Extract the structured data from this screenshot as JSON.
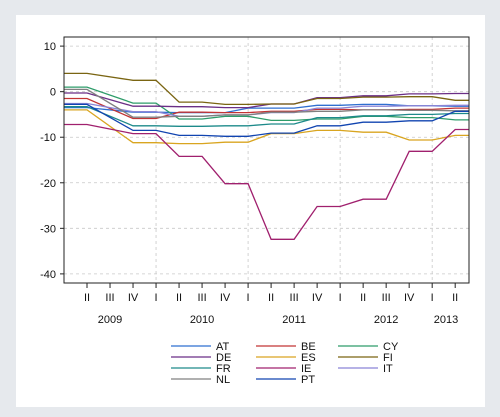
{
  "chart_data": {
    "type": "line",
    "title": "",
    "xlabel": "",
    "ylabel": "",
    "ylim": [
      -42,
      12
    ],
    "grid": true,
    "legend_placement": "bottom",
    "y_ticks": [
      10,
      0,
      -10,
      -20,
      -30,
      -40
    ],
    "x_quarter_ticks": [
      {
        "t": 2009.25,
        "label": "II"
      },
      {
        "t": 2009.5,
        "label": "III"
      },
      {
        "t": 2009.75,
        "label": "IV"
      },
      {
        "t": 2010.0,
        "label": "I"
      },
      {
        "t": 2010.25,
        "label": "II"
      },
      {
        "t": 2010.5,
        "label": "III"
      },
      {
        "t": 2010.75,
        "label": "IV"
      },
      {
        "t": 2011.0,
        "label": "I"
      },
      {
        "t": 2011.25,
        "label": "II"
      },
      {
        "t": 2011.5,
        "label": "III"
      },
      {
        "t": 2011.75,
        "label": "IV"
      },
      {
        "t": 2012.0,
        "label": "I"
      },
      {
        "t": 2012.25,
        "label": "II"
      },
      {
        "t": 2012.5,
        "label": "III"
      },
      {
        "t": 2012.75,
        "label": "IV"
      },
      {
        "t": 2013.0,
        "label": "I"
      },
      {
        "t": 2013.25,
        "label": "II"
      }
    ],
    "x_year_labels": [
      {
        "t": 2009.5,
        "label": "2009"
      },
      {
        "t": 2010.5,
        "label": "2010"
      },
      {
        "t": 2011.5,
        "label": "2011"
      },
      {
        "t": 2012.5,
        "label": "2012"
      },
      {
        "t": 2013.15,
        "label": "2013"
      }
    ],
    "series": [
      {
        "name": "AT",
        "color": "#2f6fd0",
        "x": [
          2009.0,
          2009.25,
          2009.75,
          2010.0,
          2010.25,
          2010.5,
          2010.75,
          2011.0,
          2011.25,
          2011.5,
          2011.75,
          2012.0,
          2012.25,
          2012.5,
          2012.75,
          2013.0,
          2013.25,
          2013.4
        ],
        "y": [
          -3.5,
          -3.5,
          -4.5,
          -4.5,
          -4.6,
          -4.6,
          -4.6,
          -3.6,
          -3.6,
          -3.6,
          -3.0,
          -3.0,
          -2.8,
          -2.8,
          -3.1,
          -3.1,
          -3.2,
          -3.2
        ]
      },
      {
        "name": "BE",
        "color": "#c23434",
        "x": [
          2009.0,
          2009.25,
          2009.75,
          2010.0,
          2010.25,
          2010.5,
          2010.75,
          2011.0,
          2011.25,
          2011.5,
          2011.75,
          2012.0,
          2012.25,
          2012.5,
          2012.75,
          2013.0,
          2013.25,
          2013.4
        ],
        "y": [
          -1.5,
          -1.5,
          -5.9,
          -5.9,
          -4.5,
          -4.5,
          -4.6,
          -4.6,
          -4.3,
          -4.3,
          -3.9,
          -3.9,
          -4.0,
          -4.0,
          -3.9,
          -3.9,
          -3.6,
          -3.6
        ]
      },
      {
        "name": "CY",
        "color": "#2e9c6a",
        "x": [
          2009.0,
          2009.25,
          2009.75,
          2010.0,
          2010.25,
          2010.5,
          2010.75,
          2011.0,
          2011.25,
          2011.5,
          2011.75,
          2012.0,
          2012.25,
          2012.5,
          2012.75,
          2013.0,
          2013.25,
          2013.4
        ],
        "y": [
          1.0,
          1.0,
          -2.5,
          -2.5,
          -6.0,
          -6.0,
          -5.4,
          -5.4,
          -6.3,
          -6.3,
          -6.0,
          -6.0,
          -5.4,
          -5.4,
          -5.7,
          -5.7,
          -6.2,
          -6.2
        ]
      },
      {
        "name": "DE",
        "color": "#6b2f86",
        "x": [
          2009.0,
          2009.25,
          2009.75,
          2010.0,
          2010.25,
          2010.5,
          2010.75,
          2011.0,
          2011.25,
          2011.5,
          2011.75,
          2012.0,
          2012.25,
          2012.5,
          2012.75,
          2013.0,
          2013.25,
          2013.4
        ],
        "y": [
          -0.3,
          -0.3,
          -3.2,
          -3.2,
          -3.3,
          -3.3,
          -3.5,
          -3.5,
          -2.7,
          -2.7,
          -1.3,
          -1.3,
          -0.9,
          -0.9,
          -0.5,
          -0.5,
          -0.4,
          -0.4
        ]
      },
      {
        "name": "ES",
        "color": "#d9a520",
        "x": [
          2009.0,
          2009.25,
          2009.75,
          2010.0,
          2010.25,
          2010.5,
          2010.75,
          2011.0,
          2011.25,
          2011.5,
          2011.75,
          2012.0,
          2012.25,
          2012.5,
          2012.75,
          2013.0,
          2013.25,
          2013.4
        ],
        "y": [
          -4.0,
          -4.0,
          -11.2,
          -11.2,
          -11.4,
          -11.4,
          -11.1,
          -11.1,
          -9.2,
          -9.2,
          -8.5,
          -8.5,
          -8.9,
          -8.9,
          -10.6,
          -10.6,
          -9.6,
          -9.6
        ]
      },
      {
        "name": "FI",
        "color": "#7a6512",
        "x": [
          2009.0,
          2009.25,
          2009.75,
          2010.0,
          2010.25,
          2010.5,
          2010.75,
          2011.0,
          2011.25,
          2011.5,
          2011.75,
          2012.0,
          2012.25,
          2012.5,
          2012.75,
          2013.0,
          2013.25,
          2013.4
        ],
        "y": [
          4.0,
          4.0,
          2.5,
          2.5,
          -2.3,
          -2.3,
          -2.8,
          -2.8,
          -2.7,
          -2.7,
          -1.5,
          -1.5,
          -1.2,
          -1.2,
          -1.1,
          -1.1,
          -1.9,
          -1.9
        ]
      },
      {
        "name": "FR",
        "color": "#1d8a8a",
        "x": [
          2009.0,
          2009.25,
          2009.75,
          2010.0,
          2010.25,
          2010.5,
          2010.75,
          2011.0,
          2011.25,
          2011.5,
          2011.75,
          2012.0,
          2012.25,
          2012.5,
          2012.75,
          2013.0,
          2013.25,
          2013.4
        ],
        "y": [
          -3.3,
          -3.3,
          -7.5,
          -7.5,
          -7.6,
          -7.6,
          -7.5,
          -7.5,
          -7.1,
          -7.1,
          -5.7,
          -5.7,
          -5.3,
          -5.3,
          -5.0,
          -5.0,
          -4.8,
          -4.8
        ]
      },
      {
        "name": "IE",
        "color": "#a0206e",
        "x": [
          2009.0,
          2009.25,
          2009.75,
          2010.0,
          2010.25,
          2010.5,
          2010.75,
          2011.0,
          2011.25,
          2011.5,
          2011.75,
          2012.0,
          2012.25,
          2012.5,
          2012.75,
          2013.0,
          2013.25,
          2013.4
        ],
        "y": [
          -7.2,
          -7.2,
          -9.2,
          -9.2,
          -14.2,
          -14.2,
          -20.2,
          -20.2,
          -32.4,
          -32.4,
          -25.2,
          -25.2,
          -23.6,
          -23.6,
          -13.1,
          -13.1,
          -8.3,
          -8.3
        ]
      },
      {
        "name": "IT",
        "color": "#8a85d6",
        "x": [
          2009.0,
          2009.25,
          2009.75,
          2010.0,
          2010.25,
          2010.5,
          2010.75,
          2011.0,
          2011.25,
          2011.5,
          2011.75,
          2012.0,
          2012.25,
          2012.5,
          2012.75,
          2013.0,
          2013.25,
          2013.4
        ],
        "y": [
          -2.6,
          -2.6,
          -4.4,
          -4.4,
          -5.4,
          -5.4,
          -5.1,
          -5.1,
          -4.6,
          -4.6,
          -3.6,
          -3.6,
          -3.2,
          -3.2,
          -3.1,
          -3.1,
          -3.0,
          -3.0
        ]
      },
      {
        "name": "NL",
        "color": "#808080",
        "x": [
          2009.0,
          2009.25,
          2009.75,
          2010.0,
          2010.25,
          2010.5,
          2010.75,
          2011.0,
          2011.25,
          2011.5,
          2011.75,
          2012.0,
          2012.25,
          2012.5,
          2012.75,
          2013.0,
          2013.25,
          2013.4
        ],
        "y": [
          0.5,
          0.5,
          -5.6,
          -5.6,
          -5.4,
          -5.4,
          -5.1,
          -5.1,
          -4.5,
          -4.5,
          -4.3,
          -4.3,
          -4.0,
          -4.0,
          -4.1,
          -4.1,
          -4.2,
          -4.2
        ]
      },
      {
        "name": "PT",
        "color": "#1144b0",
        "x": [
          2009.0,
          2009.25,
          2009.75,
          2010.0,
          2010.25,
          2010.5,
          2010.75,
          2011.0,
          2011.25,
          2011.5,
          2011.75,
          2012.0,
          2012.25,
          2012.5,
          2012.75,
          2013.0,
          2013.25,
          2013.4
        ],
        "y": [
          -2.8,
          -2.8,
          -8.5,
          -8.5,
          -9.6,
          -9.6,
          -9.8,
          -9.8,
          -9.1,
          -9.1,
          -7.5,
          -7.5,
          -6.7,
          -6.7,
          -6.4,
          -6.4,
          -4.3,
          -4.3
        ]
      }
    ]
  }
}
